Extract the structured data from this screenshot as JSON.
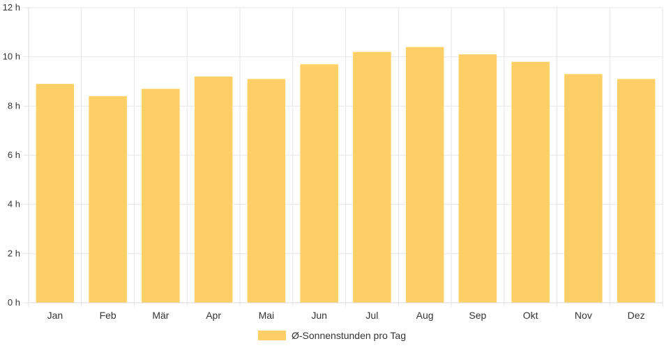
{
  "chart_data": {
    "type": "bar",
    "categories": [
      "Jan",
      "Feb",
      "Mär",
      "Apr",
      "Mai",
      "Jun",
      "Jul",
      "Aug",
      "Sep",
      "Okt",
      "Nov",
      "Dez"
    ],
    "series": [
      {
        "name": "Ø-Sonnenstunden pro Tag",
        "values": [
          8.9,
          8.4,
          8.7,
          9.2,
          9.1,
          9.7,
          10.2,
          10.4,
          10.1,
          9.8,
          9.3,
          9.1
        ],
        "color": "#fdd067"
      }
    ],
    "ylim": [
      0,
      12
    ],
    "yticks": [
      0,
      2,
      4,
      6,
      8,
      10,
      12
    ],
    "yunit": "h",
    "ytick_labels": [
      "0 h",
      "2 h",
      "4 h",
      "6 h",
      "8 h",
      "10 h",
      "12 h"
    ],
    "grid": true,
    "grid_color": "#e6e6e6",
    "legend": "bottom"
  }
}
